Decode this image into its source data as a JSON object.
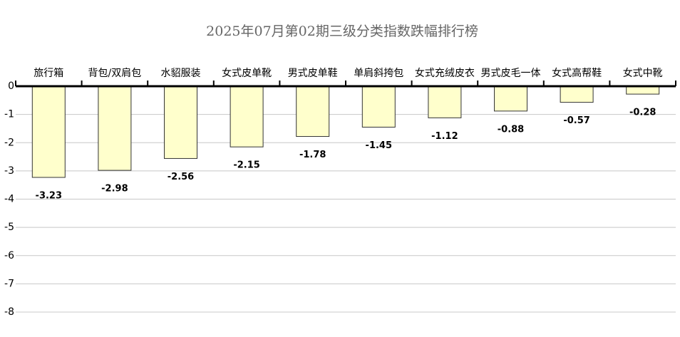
{
  "chart_data": {
    "type": "bar",
    "title": "2025年07月第02期三级分类指数跌幅排行榜",
    "categories": [
      "旅行箱",
      "背包/双肩包",
      "水貂服装",
      "女式皮单靴",
      "男式皮单鞋",
      "单肩斜挎包",
      "女式充绒皮衣",
      "男式皮毛一体",
      "女式高帮鞋",
      "女式中靴"
    ],
    "values": [
      -3.23,
      -2.98,
      -2.56,
      -2.15,
      -1.78,
      -1.45,
      -1.12,
      -0.88,
      -0.57,
      -0.28
    ],
    "color": "#ffffcc",
    "ylim": [
      -8,
      0
    ],
    "yticks": [
      0,
      -1,
      -2,
      -3,
      -4,
      -5,
      -6,
      -7,
      -8
    ],
    "grid": true
  }
}
